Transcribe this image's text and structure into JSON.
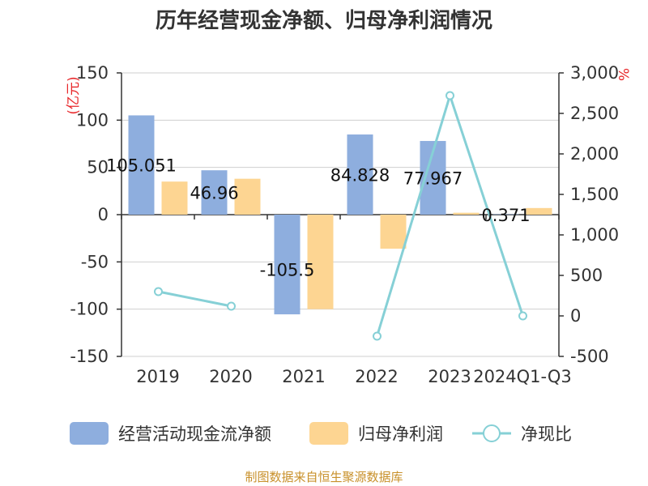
{
  "chart_data": {
    "type": "bar",
    "title": "历年经营现金净额、归母净利润情况",
    "categories": [
      "2019",
      "2020",
      "2021",
      "2022",
      "2023",
      "2024Q1-Q3"
    ],
    "series": [
      {
        "name": "经营活动现金流净额",
        "type": "bar",
        "axis": "left",
        "color": "#8eaede",
        "values": [
          105.051,
          46.96,
          -105.5,
          84.828,
          77.967,
          0.371
        ]
      },
      {
        "name": "归母净利润",
        "type": "bar",
        "axis": "left",
        "color": "#fdd592",
        "values": [
          35,
          38,
          -100,
          -36,
          2,
          7
        ]
      },
      {
        "name": "净现比",
        "type": "line",
        "axis": "right",
        "color": "#86d0d6",
        "values": [
          300,
          120,
          null,
          -250,
          2720,
          0
        ]
      }
    ],
    "data_labels": [
      "105.051",
      "46.96",
      "-105.5",
      "84.828",
      "77.967",
      "0.371"
    ],
    "y_left": {
      "label": "(亿元)",
      "ticks": [
        "150",
        "100",
        "50",
        "0",
        "-50",
        "-100",
        "-150"
      ],
      "range": [
        -150,
        150
      ]
    },
    "y_right": {
      "label": "%",
      "ticks": [
        "3,000",
        "2,500",
        "2,000",
        "1,500",
        "1,000",
        "500",
        "0",
        "-500"
      ],
      "range": [
        -500,
        3000
      ]
    },
    "grid": true,
    "legend_position": "bottom"
  },
  "source": "制图数据来自恒生聚源数据库"
}
